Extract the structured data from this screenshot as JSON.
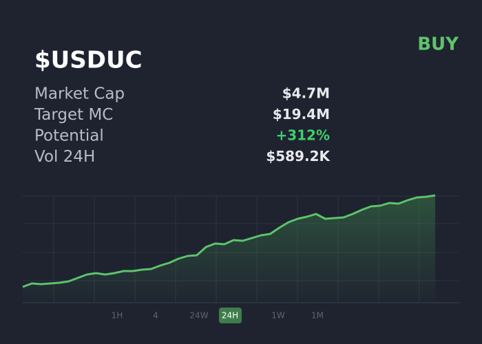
{
  "header": {
    "title": "$USDUC",
    "action": "BUY"
  },
  "stats": [
    {
      "label": "Market Cap",
      "value": "$4.7M"
    },
    {
      "label": "Target MC",
      "value": "$19.4M"
    },
    {
      "label": "Potential",
      "value": "+312%"
    },
    {
      "label": "Vol 24H",
      "value": "$589.2K"
    }
  ],
  "chart_data": {
    "type": "line",
    "color": "#5cc46a",
    "ylim": [
      0,
      160
    ],
    "values": [
      23,
      28,
      27,
      28,
      29,
      31,
      36,
      41,
      43,
      41,
      43,
      46,
      46,
      48,
      49,
      54,
      58,
      64,
      68,
      69,
      81,
      86,
      85,
      91,
      90,
      94,
      98,
      100,
      109,
      117,
      122,
      125,
      129,
      122,
      123,
      124,
      129,
      135,
      140,
      141,
      145,
      144,
      149,
      153,
      154,
      156
    ]
  },
  "timeframes": {
    "options": [
      "1H",
      "4",
      "24W",
      "24H",
      "1W",
      "1M"
    ],
    "active": "24H"
  }
}
